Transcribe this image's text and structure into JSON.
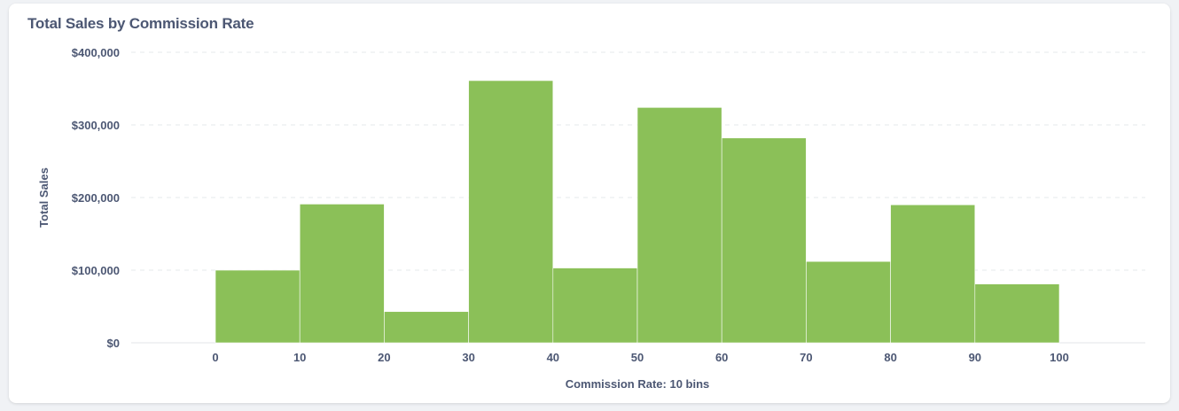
{
  "card": {
    "title": "Total Sales by Commission Rate"
  },
  "chart_data": {
    "type": "bar",
    "title": "Total Sales by Commission Rate",
    "xlabel": "Commission Rate: 10 bins",
    "ylabel": "Total Sales",
    "x_ticks": [
      "0",
      "10",
      "20",
      "30",
      "40",
      "50",
      "60",
      "70",
      "80",
      "90",
      "100"
    ],
    "y_ticks": [
      "$0",
      "$100,000",
      "$200,000",
      "$300,000",
      "$400,000"
    ],
    "bins": [
      [
        0,
        10
      ],
      [
        10,
        20
      ],
      [
        20,
        30
      ],
      [
        30,
        40
      ],
      [
        40,
        50
      ],
      [
        50,
        60
      ],
      [
        60,
        70
      ],
      [
        70,
        80
      ],
      [
        80,
        90
      ],
      [
        90,
        100
      ]
    ],
    "values": [
      100000,
      191000,
      43000,
      361000,
      103000,
      324000,
      282000,
      112000,
      190000,
      81000
    ],
    "ylim": [
      0,
      400000
    ],
    "xlim": [
      0,
      100
    ],
    "grid": "horizontal-dashed",
    "bar_color": "#8bc058",
    "legend": "none"
  }
}
